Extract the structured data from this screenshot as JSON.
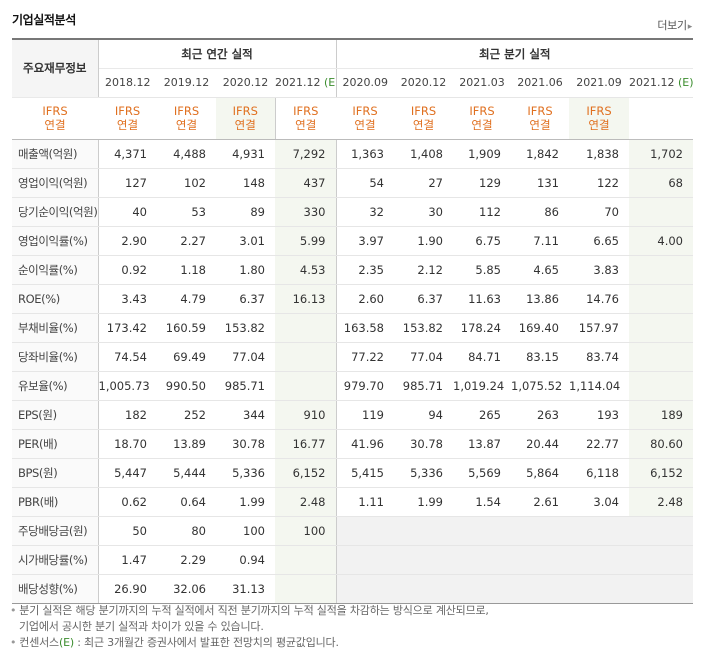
{
  "section_title": "기업실적분석",
  "more_link": "더보기",
  "row_header": "주요재무정보",
  "group_annual": "최근 연간 실적",
  "group_quarter": "최근 분기 실적",
  "periods": [
    {
      "label": "2018.12",
      "est": false
    },
    {
      "label": "2019.12",
      "est": false
    },
    {
      "label": "2020.12",
      "est": false
    },
    {
      "label": "2021.12",
      "est": true
    },
    {
      "label": "2020.09",
      "est": false
    },
    {
      "label": "2020.12",
      "est": false
    },
    {
      "label": "2021.03",
      "est": false
    },
    {
      "label": "2021.06",
      "est": false
    },
    {
      "label": "2021.09",
      "est": false
    },
    {
      "label": "2021.12",
      "est": true
    }
  ],
  "est_mark": "(E)",
  "ifrs_line1": "IFRS",
  "ifrs_line2": "연결",
  "rows": [
    {
      "label": "매출액(억원)",
      "values": [
        "4,371",
        "4,488",
        "4,931",
        "7,292",
        "1,363",
        "1,408",
        "1,909",
        "1,842",
        "1,838",
        "1,702"
      ]
    },
    {
      "label": "영업이익(억원)",
      "values": [
        "127",
        "102",
        "148",
        "437",
        "54",
        "27",
        "129",
        "131",
        "122",
        "68"
      ]
    },
    {
      "label": "당기순이익(억원)",
      "values": [
        "40",
        "53",
        "89",
        "330",
        "32",
        "30",
        "112",
        "86",
        "70",
        ""
      ]
    },
    {
      "label": "영업이익률(%)",
      "values": [
        "2.90",
        "2.27",
        "3.01",
        "5.99",
        "3.97",
        "1.90",
        "6.75",
        "7.11",
        "6.65",
        "4.00"
      ]
    },
    {
      "label": "순이익률(%)",
      "values": [
        "0.92",
        "1.18",
        "1.80",
        "4.53",
        "2.35",
        "2.12",
        "5.85",
        "4.65",
        "3.83",
        ""
      ]
    },
    {
      "label": "ROE(%)",
      "values": [
        "3.43",
        "4.79",
        "6.37",
        "16.13",
        "2.60",
        "6.37",
        "11.63",
        "13.86",
        "14.76",
        ""
      ]
    },
    {
      "label": "부채비율(%)",
      "values": [
        "173.42",
        "160.59",
        "153.82",
        "",
        "163.58",
        "153.82",
        "178.24",
        "169.40",
        "157.97",
        ""
      ]
    },
    {
      "label": "당좌비율(%)",
      "values": [
        "74.54",
        "69.49",
        "77.04",
        "",
        "77.22",
        "77.04",
        "84.71",
        "83.15",
        "83.74",
        ""
      ]
    },
    {
      "label": "유보율(%)",
      "values": [
        "1,005.73",
        "990.50",
        "985.71",
        "",
        "979.70",
        "985.71",
        "1,019.24",
        "1,075.52",
        "1,114.04",
        ""
      ]
    },
    {
      "label": "EPS(원)",
      "values": [
        "182",
        "252",
        "344",
        "910",
        "119",
        "94",
        "265",
        "263",
        "193",
        "189"
      ]
    },
    {
      "label": "PER(배)",
      "values": [
        "18.70",
        "13.89",
        "30.78",
        "16.77",
        "41.96",
        "30.78",
        "13.87",
        "20.44",
        "22.77",
        "80.60"
      ]
    },
    {
      "label": "BPS(원)",
      "values": [
        "5,447",
        "5,444",
        "5,336",
        "6,152",
        "5,415",
        "5,336",
        "5,569",
        "5,864",
        "6,118",
        "6,152"
      ]
    },
    {
      "label": "PBR(배)",
      "values": [
        "0.62",
        "0.64",
        "1.99",
        "2.48",
        "1.11",
        "1.99",
        "1.54",
        "2.61",
        "3.04",
        "2.48"
      ]
    },
    {
      "label": "주당배당금(원)",
      "values": [
        "50",
        "80",
        "100",
        "100",
        "",
        "",
        "",
        "",
        "",
        ""
      ]
    },
    {
      "label": "시가배당률(%)",
      "values": [
        "1.47",
        "2.29",
        "0.94",
        "",
        "",
        "",
        "",
        "",
        "",
        ""
      ]
    },
    {
      "label": "배당성향(%)",
      "values": [
        "26.90",
        "32.06",
        "31.13",
        "",
        "",
        "",
        "",
        "",
        "",
        ""
      ]
    }
  ],
  "group_starts": [
    0,
    3,
    6,
    9,
    13
  ],
  "empty_shaded": {
    "13": [
      4,
      5,
      6,
      7,
      8,
      9
    ],
    "14": [
      4,
      5,
      6,
      7,
      8,
      9
    ],
    "15": [
      4,
      5,
      6,
      7,
      8,
      9
    ]
  },
  "notes": {
    "note1_line1": "분기 실적은 해당 분기까지의 누적 실적에서 직전 분기까지의 누적 실적을 차감하는 방식으로 계산되므로,",
    "note1_line2": "기업에서 공시한 분기 실적과 차이가 있을 수 있습니다.",
    "note2_prefix": "컨센서스",
    "note2_mark": "(E)",
    "note2_rest": " : 최근 3개월간 증권사에서 발표한 전망치의 평균값입니다."
  },
  "colors": {
    "ifrs": "#e07020",
    "estimate_mark": "#3b8d2e",
    "estimate_bg": "#f4f7f0"
  }
}
